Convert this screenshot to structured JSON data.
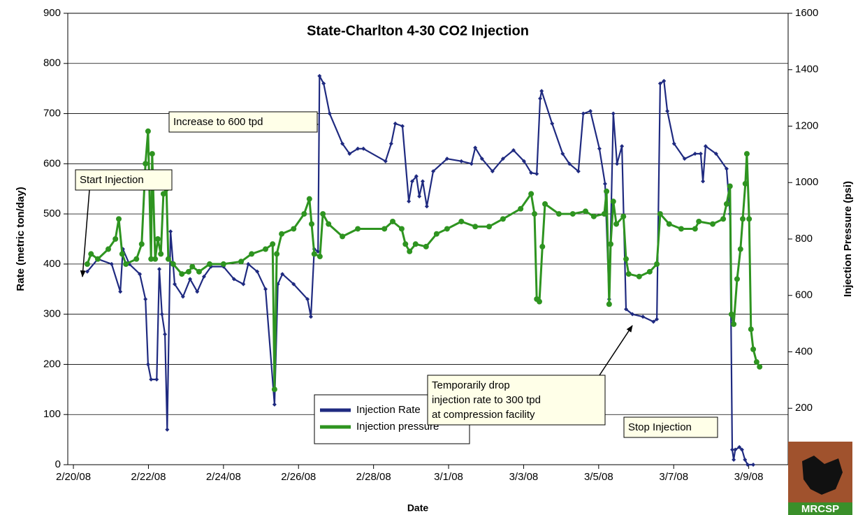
{
  "chart_data": {
    "type": "line",
    "title": "State-Charlton 4-30 CO2 Injection",
    "x_label": "Date",
    "y_label": "Rate (metric ton/day)",
    "y2_label": "Injection Pressure (psi)",
    "xlim": [
      -0.15,
      19.05
    ],
    "xticks": [
      {
        "value": 0,
        "label": "2/20/08"
      },
      {
        "value": 2,
        "label": "2/22/08"
      },
      {
        "value": 4,
        "label": "2/24/08"
      },
      {
        "value": 6,
        "label": "2/26/08"
      },
      {
        "value": 8,
        "label": "2/28/08"
      },
      {
        "value": 10,
        "label": "3/1/08"
      },
      {
        "value": 12,
        "label": "3/3/08"
      },
      {
        "value": 14,
        "label": "3/5/08"
      },
      {
        "value": 16,
        "label": "3/7/08"
      },
      {
        "value": 18,
        "label": "3/9/08"
      }
    ],
    "ylim": [
      0,
      900
    ],
    "yticks": [
      0,
      100,
      200,
      300,
      400,
      500,
      600,
      700,
      800,
      900
    ],
    "y2lim": [
      0,
      1600
    ],
    "y2ticks": [
      200,
      400,
      600,
      800,
      1000,
      1200,
      1400,
      1600
    ],
    "grid": true,
    "series": [
      {
        "name": "Injection Rate",
        "color": "#1f2a80",
        "marker": "diamond",
        "x": [
          0.37,
          0.65,
          1.02,
          1.25,
          1.32,
          1.49,
          1.77,
          1.92,
          1.99,
          2.07,
          2.22,
          2.29,
          2.36,
          2.44,
          2.5,
          2.59,
          2.7,
          2.92,
          3.11,
          3.3,
          3.48,
          3.67,
          4.0,
          4.28,
          4.53,
          4.66,
          4.9,
          5.12,
          5.36,
          5.45,
          5.57,
          5.87,
          6.24,
          6.33,
          6.42,
          6.52,
          6.56,
          6.67,
          6.83,
          7.17,
          7.36,
          7.58,
          7.73,
          8.32,
          8.47,
          8.58,
          8.77,
          8.94,
          9.03,
          9.14,
          9.22,
          9.31,
          9.42,
          9.59,
          9.96,
          10.34,
          10.61,
          10.71,
          10.89,
          11.17,
          11.45,
          11.73,
          12.01,
          12.2,
          12.35,
          12.44,
          12.48,
          12.76,
          13.04,
          13.22,
          13.46,
          13.59,
          13.78,
          14.02,
          14.17,
          14.28,
          14.39,
          14.49,
          14.62,
          14.73,
          14.9,
          15.18,
          15.46,
          15.55,
          15.64,
          15.74,
          15.83,
          16.01,
          16.29,
          16.57,
          16.72,
          16.78,
          16.85,
          17.13,
          17.41,
          17.5,
          17.56,
          17.6,
          17.64,
          17.75,
          17.82,
          17.9,
          17.97,
          18.12
        ],
        "values": [
          385,
          410,
          400,
          345,
          430,
          400,
          380,
          330,
          200,
          170,
          170,
          390,
          300,
          260,
          70,
          465,
          360,
          335,
          370,
          345,
          375,
          395,
          395,
          370,
          360,
          400,
          385,
          350,
          120,
          360,
          380,
          360,
          330,
          295,
          430,
          425,
          775,
          760,
          700,
          640,
          620,
          630,
          630,
          605,
          640,
          680,
          675,
          525,
          565,
          575,
          535,
          565,
          515,
          585,
          610,
          605,
          600,
          632,
          610,
          585,
          610,
          627,
          605,
          582,
          580,
          730,
          745,
          680,
          620,
          600,
          585,
          700,
          705,
          630,
          560,
          330,
          700,
          600,
          635,
          310,
          300,
          295,
          285,
          290,
          760,
          765,
          705,
          640,
          610,
          620,
          620,
          565,
          635,
          620,
          590,
          500,
          30,
          10,
          30,
          35,
          30,
          10,
          0,
          0
        ]
      },
      {
        "name": "Injection pressure",
        "color": "#2e9420",
        "marker": "circle",
        "axis": "y2",
        "x": [
          0.37,
          0.47,
          0.65,
          0.93,
          1.12,
          1.21,
          1.3,
          1.4,
          1.68,
          1.82,
          1.92,
          1.99,
          2.07,
          2.1,
          2.18,
          2.25,
          2.33,
          2.4,
          2.48,
          2.53,
          2.66,
          2.89,
          3.07,
          3.17,
          3.35,
          3.63,
          4.0,
          4.47,
          4.75,
          5.12,
          5.31,
          5.36,
          5.42,
          5.55,
          5.87,
          6.15,
          6.29,
          6.35,
          6.42,
          6.57,
          6.65,
          6.8,
          7.17,
          7.58,
          8.29,
          8.51,
          8.75,
          8.85,
          8.96,
          9.12,
          9.4,
          9.68,
          9.96,
          10.34,
          10.71,
          11.08,
          11.45,
          11.92,
          12.2,
          12.29,
          12.35,
          12.42,
          12.5,
          12.57,
          12.94,
          13.31,
          13.65,
          13.87,
          14.15,
          14.21,
          14.28,
          14.32,
          14.39,
          14.47,
          14.66,
          14.73,
          14.8,
          15.08,
          15.36,
          15.55,
          15.64,
          15.88,
          16.2,
          16.57,
          16.67,
          17.04,
          17.32,
          17.41,
          17.5,
          17.54,
          17.6,
          17.69,
          17.78,
          17.84,
          17.91,
          17.95,
          18.01,
          18.06,
          18.12,
          18.21,
          18.29
        ],
        "values": [
          711,
          747,
          729,
          764,
          800,
          871,
          747,
          711,
          729,
          782,
          1067,
          1182,
          729,
          1102,
          729,
          800,
          747,
          960,
          978,
          729,
          711,
          676,
          684,
          702,
          684,
          711,
          711,
          720,
          747,
          764,
          782,
          267,
          747,
          818,
          836,
          889,
          942,
          853,
          747,
          738,
          889,
          853,
          809,
          836,
          836,
          862,
          836,
          782,
          756,
          782,
          773,
          818,
          836,
          862,
          844,
          844,
          871,
          907,
          960,
          889,
          587,
          578,
          773,
          924,
          889,
          889,
          898,
          880,
          889,
          969,
          569,
          782,
          933,
          853,
          880,
          729,
          676,
          667,
          684,
          711,
          889,
          853,
          836,
          836,
          862,
          853,
          871,
          924,
          987,
          533,
          498,
          658,
          764,
          871,
          996,
          1102,
          871,
          480,
          409,
          364,
          347
        ]
      }
    ],
    "annotations": [
      {
        "lines": [
          "Start Injection"
        ]
      },
      {
        "lines": [
          "Increase to 600 tpd"
        ]
      },
      {
        "lines": [
          "Temporarily drop",
          "injection rate to 300 tpd",
          "at compression facility"
        ]
      },
      {
        "lines": [
          "Stop Injection"
        ]
      }
    ],
    "logo_text": "MRCSP"
  }
}
